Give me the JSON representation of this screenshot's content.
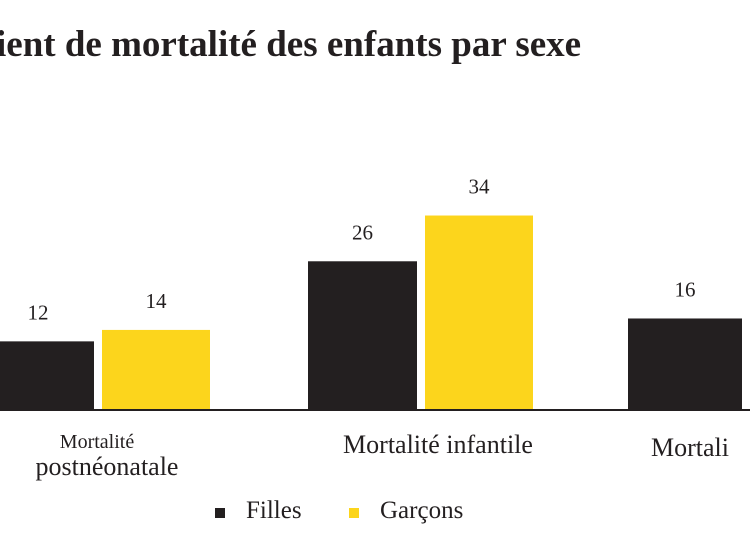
{
  "chart_data": {
    "type": "bar",
    "title": "ient de mortalité des enfants par sexe",
    "categories": [
      [
        "Mortalité",
        "postnéonatale"
      ],
      [
        "Mortalité infantile"
      ],
      [
        "Mortali"
      ]
    ],
    "series": [
      {
        "name": "Filles",
        "color": "#231f20",
        "values": [
          12,
          26,
          16
        ]
      },
      {
        "name": "Garçons",
        "color": "#fcd51c",
        "values": [
          14,
          34,
          null
        ]
      }
    ],
    "data_labels": [
      [
        "12",
        "26",
        "16"
      ],
      [
        "14",
        "34",
        ""
      ]
    ],
    "xlabel": "",
    "ylabel": "",
    "grid": false,
    "legend_position": "bottom"
  }
}
